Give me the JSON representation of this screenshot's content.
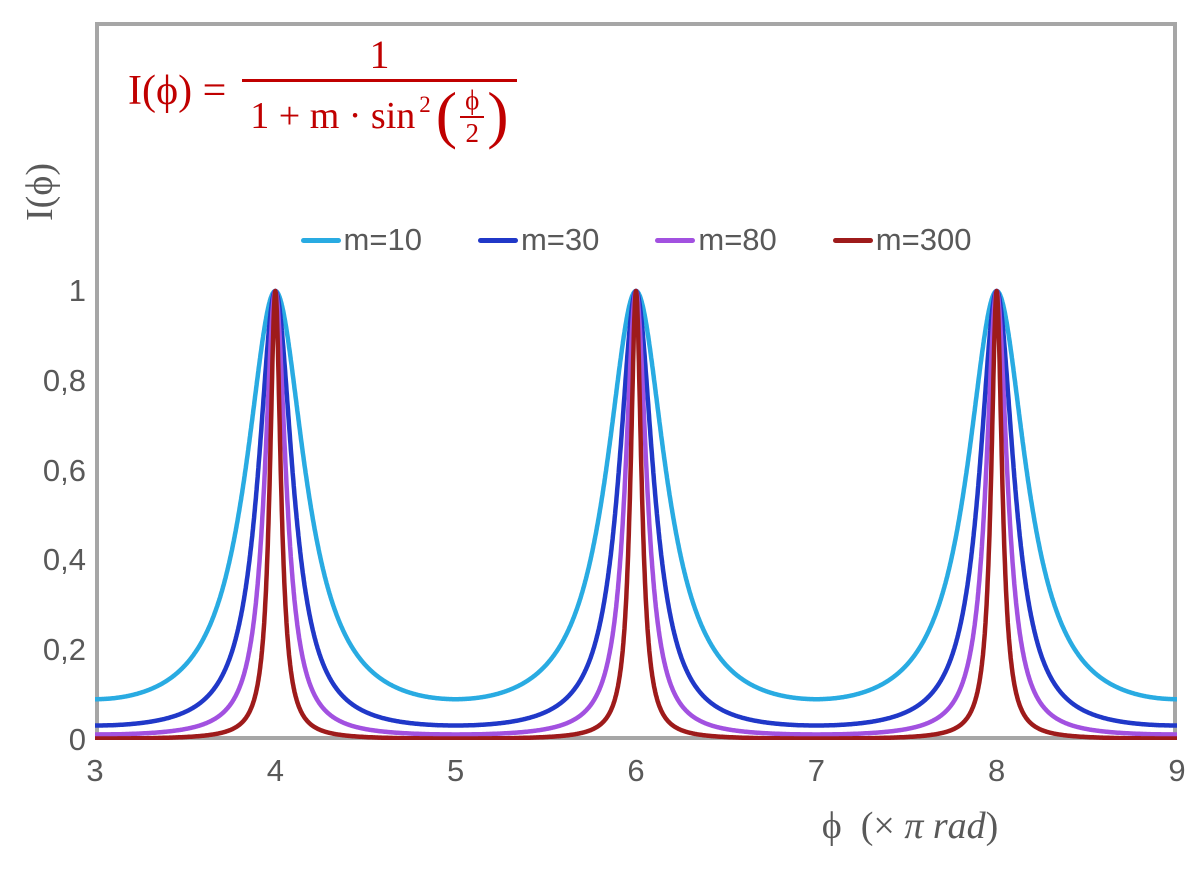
{
  "chart_data": {
    "type": "line",
    "title": "",
    "function": "I(phi) = 1 / (1 + m * sin^2(phi/2))",
    "x_variable": "phi in units of pi rad",
    "x_range": [
      3,
      9
    ],
    "y_axis_top_shown": 1.6,
    "x_ticks": [
      3,
      4,
      5,
      6,
      7,
      8,
      9
    ],
    "y_ticks": [
      0,
      0.2,
      0.4,
      0.6,
      0.8,
      1
    ],
    "y_tick_labels": [
      "0",
      "0,2",
      "0,4",
      "0,6",
      "0,8",
      "1"
    ],
    "xlabel": "ϕ (× π rad)",
    "ylabel": "I(ϕ)",
    "grid": false,
    "legend_position": "top-center",
    "peaks_at_x": [
      4,
      6,
      8
    ],
    "peak_value": 1,
    "series": [
      {
        "name": "m=10",
        "m": 10,
        "color": "#29abe2",
        "min_value": 0.0909
      },
      {
        "name": "m=30",
        "m": 30,
        "color": "#2038c8",
        "min_value": 0.0323
      },
      {
        "name": "m=80",
        "m": 80,
        "color": "#a251e0",
        "min_value": 0.0123
      },
      {
        "name": "m=300",
        "m": 300,
        "color": "#9e1b1b",
        "min_value": 0.0033
      }
    ]
  },
  "formula": {
    "color": "#c00000",
    "lhs": "I(ϕ) =",
    "numerator": "1",
    "den_prefix": "1 + m · sin",
    "den_exponent": "2",
    "paren_open": "(",
    "paren_close": ")",
    "inner_numerator": "ϕ",
    "inner_denominator": "2"
  },
  "axis_titles": {
    "y_label": "I(ϕ)",
    "x_phi": "ϕ",
    "x_mid": "  (× ",
    "x_italic": "π rad",
    "x_close": ")"
  },
  "frame_color": "#a6a6a6",
  "text_color": "#595959"
}
